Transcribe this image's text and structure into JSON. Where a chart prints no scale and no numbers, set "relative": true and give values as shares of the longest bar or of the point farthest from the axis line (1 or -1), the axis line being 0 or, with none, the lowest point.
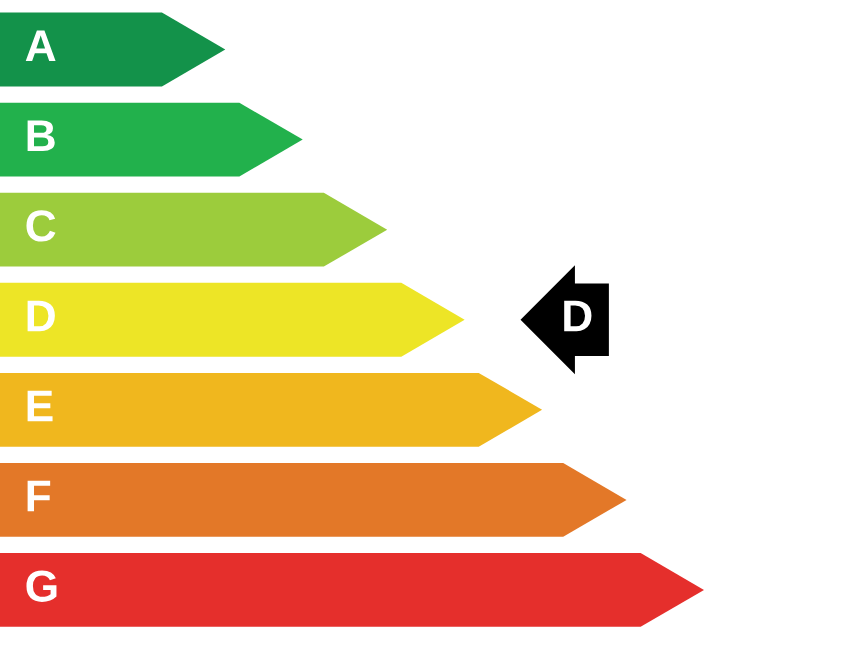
{
  "chart_data": {
    "type": "bar",
    "orientation": "horizontal",
    "relative": true,
    "categories": [
      "A",
      "B",
      "C",
      "D",
      "E",
      "F",
      "G"
    ],
    "values": [
      0.32,
      0.43,
      0.55,
      0.66,
      0.77,
      0.89,
      1
    ],
    "colors": [
      "#13924a",
      "#22b14c",
      "#9ccc3c",
      "#ede526",
      "#f0b71e",
      "#e37828",
      "#e52f2c"
    ],
    "annotations": [
      "D"
    ]
  }
}
